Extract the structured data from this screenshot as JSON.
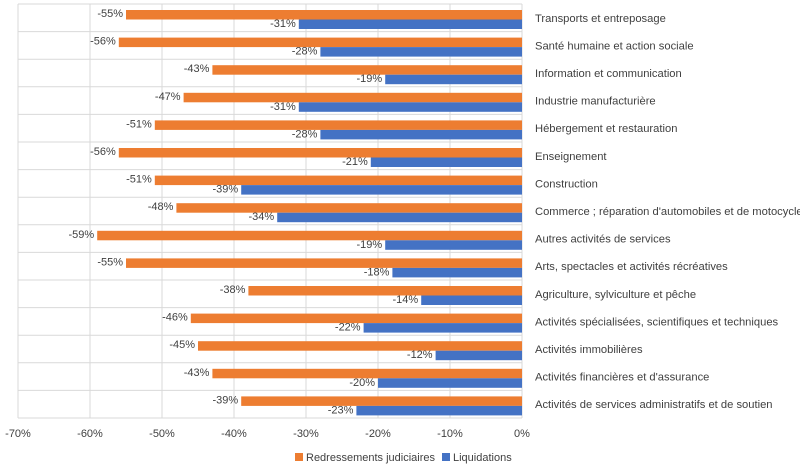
{
  "chart_data": {
    "type": "bar",
    "orientation": "horizontal",
    "title": "",
    "xlabel": "",
    "ylabel": "",
    "xlim": [
      -70,
      0
    ],
    "x_ticks": [
      -70,
      -60,
      -50,
      -40,
      -30,
      -20,
      -10,
      0
    ],
    "x_tick_labels": [
      "-70%",
      "-60%",
      "-50%",
      "-40%",
      "-30%",
      "-20%",
      "-10%",
      "0%"
    ],
    "grid": true,
    "legend_position": "bottom",
    "categories": [
      "Transports et entreposage",
      "Santé humaine et action sociale",
      "Information et communication",
      "Industrie manufacturière",
      "Hébergement et restauration",
      "Enseignement",
      "Construction",
      "Commerce ; réparation d'automobiles et de motocycles",
      "Autres activités de services",
      "Arts, spectacles et activités récréatives",
      "Agriculture, sylviculture et pêche",
      "Activités spécialisées, scientifiques et techniques",
      "Activités immobilières",
      "Activités financières et d'assurance",
      "Activités de services administratifs et de soutien"
    ],
    "series": [
      {
        "name": "Redressements judiciaires",
        "color": "#ED7D31",
        "values": [
          -55,
          -56,
          -43,
          -47,
          -51,
          -56,
          -51,
          -48,
          -59,
          -55,
          -38,
          -46,
          -45,
          -43,
          -39
        ],
        "labels": [
          "-55%",
          "-56%",
          "-43%",
          "-47%",
          "-51%",
          "-56%",
          "-51%",
          "-48%",
          "-59%",
          "-55%",
          "-38%",
          "-46%",
          "-45%",
          "-43%",
          "-39%"
        ]
      },
      {
        "name": "Liquidations",
        "color": "#4472C4",
        "values": [
          -31,
          -28,
          -19,
          -31,
          -28,
          -21,
          -39,
          -34,
          -19,
          -18,
          -14,
          -22,
          -12,
          -20,
          -23
        ],
        "labels": [
          "-31%",
          "-28%",
          "-19%",
          "-31%",
          "-28%",
          "-21%",
          "-39%",
          "-34%",
          "-19%",
          "-18%",
          "-14%",
          "-22%",
          "-12%",
          "-20%",
          "-23%"
        ]
      }
    ]
  },
  "colors": {
    "grid": "#d9d9d9",
    "text": "#404040"
  }
}
